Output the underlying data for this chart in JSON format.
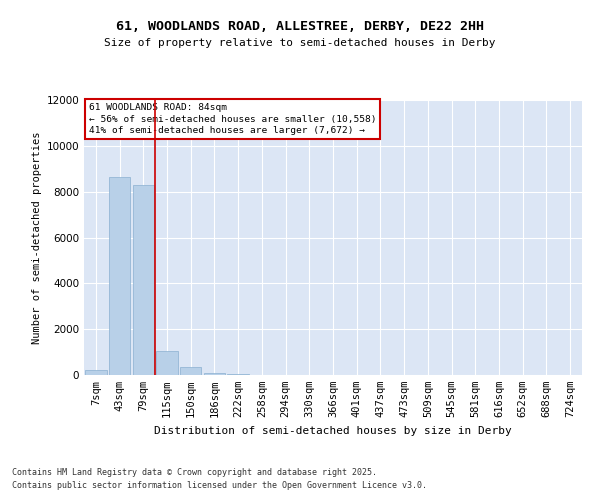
{
  "title_line1": "61, WOODLANDS ROAD, ALLESTREE, DERBY, DE22 2HH",
  "title_line2": "Size of property relative to semi-detached houses in Derby",
  "xlabel": "Distribution of semi-detached houses by size in Derby",
  "ylabel": "Number of semi-detached properties",
  "categories": [
    "7sqm",
    "43sqm",
    "79sqm",
    "115sqm",
    "150sqm",
    "186sqm",
    "222sqm",
    "258sqm",
    "294sqm",
    "330sqm",
    "366sqm",
    "401sqm",
    "437sqm",
    "473sqm",
    "509sqm",
    "545sqm",
    "581sqm",
    "616sqm",
    "652sqm",
    "688sqm",
    "724sqm"
  ],
  "values": [
    200,
    8650,
    8300,
    1050,
    350,
    100,
    60,
    0,
    0,
    0,
    0,
    0,
    0,
    0,
    0,
    0,
    0,
    0,
    0,
    0,
    0
  ],
  "bar_color": "#b8d0e8",
  "bar_edge_color": "#8ab0d0",
  "vline_color": "#cc0000",
  "annotation_title": "61 WOODLANDS ROAD: 84sqm",
  "annotation_line2": "← 56% of semi-detached houses are smaller (10,558)",
  "annotation_line3": "41% of semi-detached houses are larger (7,672) →",
  "annotation_box_color": "#ffffff",
  "annotation_box_edge": "#cc0000",
  "ylim": [
    0,
    12000
  ],
  "yticks": [
    0,
    2000,
    4000,
    6000,
    8000,
    10000,
    12000
  ],
  "plot_bg_color": "#dce6f5",
  "fig_bg_color": "#ffffff",
  "grid_color": "#ffffff",
  "footer_line1": "Contains HM Land Registry data © Crown copyright and database right 2025.",
  "footer_line2": "Contains public sector information licensed under the Open Government Licence v3.0."
}
